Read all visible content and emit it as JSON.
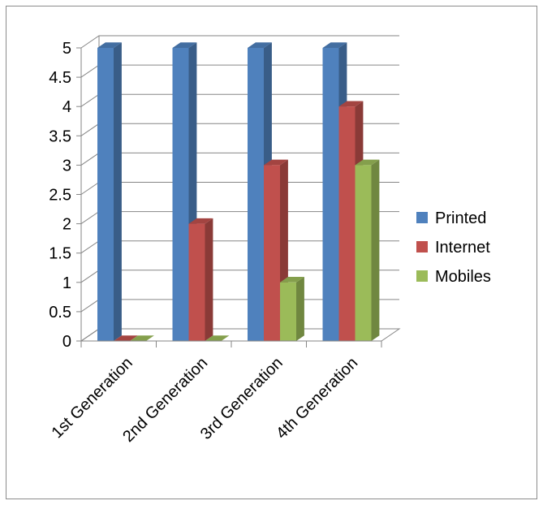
{
  "chart_data": {
    "type": "bar",
    "title": "",
    "xlabel": "",
    "ylabel": "",
    "categories": [
      "1st Generation",
      "2nd Generation",
      "3rd Generation",
      "4th Generation"
    ],
    "series": [
      {
        "name": "Printed",
        "values": [
          5,
          5,
          5,
          5
        ],
        "color": "#4F81BD"
      },
      {
        "name": "Internet",
        "values": [
          0,
          2,
          3,
          4
        ],
        "color": "#C0504D"
      },
      {
        "name": "Mobiles",
        "values": [
          0,
          0,
          1,
          3
        ],
        "color": "#9BBB59"
      }
    ],
    "ylim": [
      0,
      5
    ],
    "yticks": [
      "0",
      "0.5",
      "1",
      "1.5",
      "2",
      "2.5",
      "3",
      "3.5",
      "4",
      "4.5",
      "5"
    ],
    "grid": true,
    "legend_position": "right",
    "style": "3d-clustered-column"
  }
}
